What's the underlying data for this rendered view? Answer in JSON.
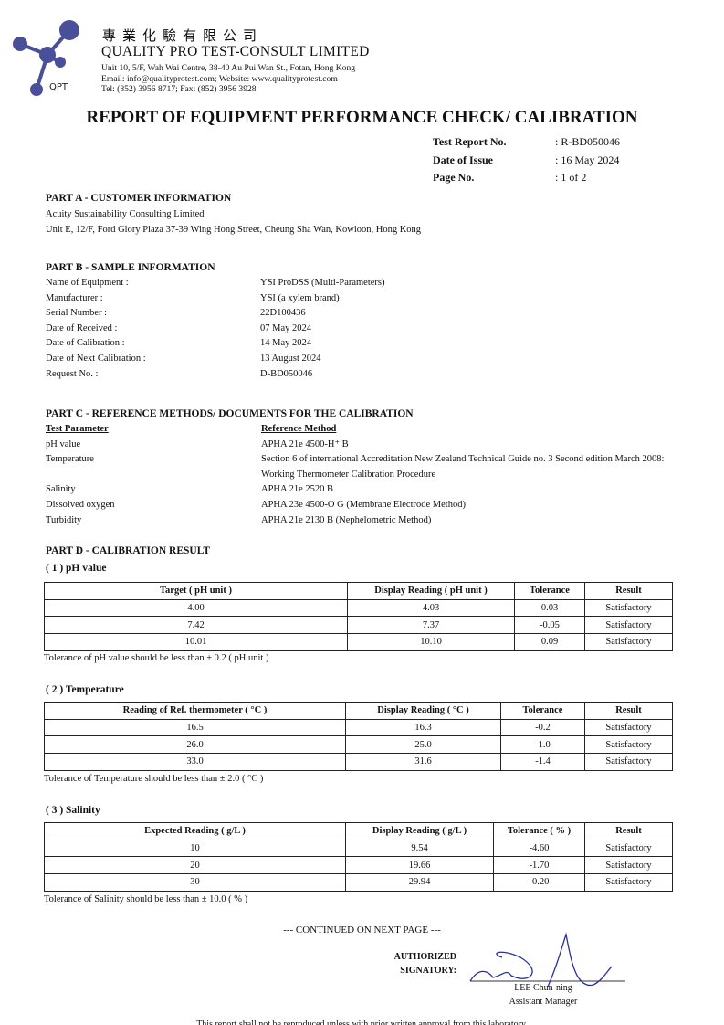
{
  "header": {
    "chinese_name": "專業化驗有限公司",
    "company": "QUALITY PRO TEST-CONSULT LIMITED",
    "address": "Unit 10, 5/F, Wah Wai Centre, 38-40 Au Pui Wan St., Fotan, Hong Kong",
    "contact": "Email: info@qualityprotest.com; Website: www.qualityprotest.com",
    "phone": "Tel: (852) 3956 8717; Fax: (852) 3956 3928",
    "logo_text": "QPT",
    "logo_color": "#4a4f9a"
  },
  "title": "REPORT OF EQUIPMENT PERFORMANCE CHECK/ CALIBRATION",
  "meta": [
    {
      "k": "Test Report No.",
      "v": ": R-BD050046"
    },
    {
      "k": "Date of Issue",
      "v": ": 16 May 2024"
    },
    {
      "k": "Page No.",
      "v": ": 1 of 2"
    }
  ],
  "part_a": {
    "heading": "PART A - CUSTOMER INFORMATION",
    "name": "Acuity Sustainability Consulting Limited",
    "address": "Unit E, 12/F, Ford Glory Plaza 37-39 Wing Hong Street, Cheung Sha Wan, Kowloon, Hong Kong"
  },
  "part_b": {
    "heading": "PART B - SAMPLE INFORMATION",
    "rows": [
      {
        "k": "Name of Equipment :",
        "v": "YSI ProDSS (Multi-Parameters)"
      },
      {
        "k": "Manufacturer :",
        "v": "YSI (a xylem brand)"
      },
      {
        "k": "Serial Number :",
        "v": "22D100436"
      },
      {
        "k": "Date of Received :",
        "v": "07 May 2024"
      },
      {
        "k": "Date of Calibration :",
        "v": "14 May 2024"
      },
      {
        "k": "Date of Next Calibration :",
        "v": "13 August 2024"
      },
      {
        "k": "Request No. :",
        "v": "D-BD050046"
      }
    ]
  },
  "part_c": {
    "heading": "PART C - REFERENCE METHODS/ DOCUMENTS FOR THE CALIBRATION",
    "col1": "Test Parameter",
    "col2": "Reference Method",
    "rows": [
      {
        "k": "pH value",
        "v": "APHA 21e 4500-H⁺ B"
      },
      {
        "k": "Temperature",
        "v": "Section 6 of international Accreditation New Zealand Technical Guide no. 3 Second edition March 2008: Working Thermometer Calibration Procedure"
      },
      {
        "k": "Salinity",
        "v": "APHA 21e 2520 B"
      },
      {
        "k": "Dissolved oxygen",
        "v": "APHA 23e 4500-O G (Membrane Electrode Method)"
      },
      {
        "k": "Turbidity",
        "v": "APHA 21e 2130 B (Nephelometric Method)"
      }
    ]
  },
  "part_d": {
    "heading": "PART D - CALIBRATION RESULT",
    "ph": {
      "title": "( 1 )  pH value",
      "headers": [
        "Target ( pH unit )",
        "Display Reading ( pH unit )",
        "Tolerance",
        "Result"
      ],
      "rows": [
        [
          "4.00",
          "4.03",
          "0.03",
          "Satisfactory"
        ],
        [
          "7.42",
          "7.37",
          "-0.05",
          "Satisfactory"
        ],
        [
          "10.01",
          "10.10",
          "0.09",
          "Satisfactory"
        ]
      ],
      "note": "Tolerance of pH value should be less than ± 0.2 ( pH unit )"
    },
    "temp": {
      "title": "( 2 )  Temperature",
      "headers": [
        "Reading of Ref. thermometer ( °C )",
        "Display Reading ( °C )",
        "Tolerance",
        "Result"
      ],
      "rows": [
        [
          "16.5",
          "16.3",
          "-0.2",
          "Satisfactory"
        ],
        [
          "26.0",
          "25.0",
          "-1.0",
          "Satisfactory"
        ],
        [
          "33.0",
          "31.6",
          "-1.4",
          "Satisfactory"
        ]
      ],
      "note": "Tolerance of Temperature should be less than ± 2.0 ( °C )"
    },
    "sal": {
      "title": "( 3 )  Salinity",
      "headers": [
        "Expected Reading ( g/L )",
        "Display Reading ( g/L )",
        "Tolerance ( % )",
        "Result"
      ],
      "rows": [
        [
          "10",
          "9.54",
          "-4.60",
          "Satisfactory"
        ],
        [
          "20",
          "19.66",
          "-1.70",
          "Satisfactory"
        ],
        [
          "30",
          "29.94",
          "-0.20",
          "Satisfactory"
        ]
      ],
      "note": "Tolerance of Salinity should be less than ± 10.0 ( % )"
    }
  },
  "footer": {
    "continued": "--- CONTINUED ON NEXT PAGE ---",
    "auth1": "AUTHORIZED",
    "auth2": "SIGNATORY:",
    "signer": "LEE Chun-ning",
    "signer_title": "Assistant Manager",
    "disclaimer": "This report shall not be reproduced unless with prior written approval from this laboratory."
  }
}
